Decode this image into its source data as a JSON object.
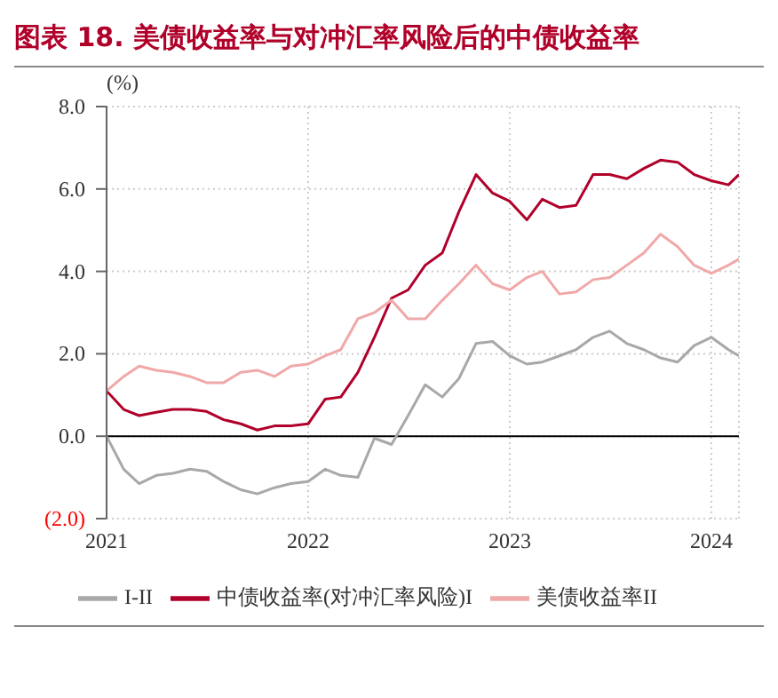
{
  "chart_data": {
    "type": "line",
    "title": "图表 18. 美债收益率与对冲汇率风险后的中债收益率",
    "ylabel": "(%)",
    "x": [
      "2021-01-01",
      "2021-02-01",
      "2021-03-01",
      "2021-04-01",
      "2021-05-01",
      "2021-06-01",
      "2021-07-01",
      "2021-08-01",
      "2021-09-01",
      "2021-10-01",
      "2021-11-01",
      "2021-12-01",
      "2022-01-01",
      "2022-02-01",
      "2022-03-01",
      "2022-04-01",
      "2022-05-01",
      "2022-06-01",
      "2022-07-01",
      "2022-08-01",
      "2022-09-01",
      "2022-10-01",
      "2022-11-01",
      "2022-12-01",
      "2023-01-01",
      "2023-02-01",
      "2023-03-01",
      "2023-04-01",
      "2023-05-01",
      "2023-06-01",
      "2023-07-01",
      "2023-08-01",
      "2023-09-01",
      "2023-10-01",
      "2023-11-01",
      "2023-12-01",
      "2024-01-01",
      "2024-02-01",
      "2024-02-20"
    ],
    "series": [
      {
        "name": "中债收益率(对冲汇率风险)I",
        "color": "#b0002a",
        "values": [
          1.1,
          0.65,
          0.5,
          0.58,
          0.65,
          0.65,
          0.6,
          0.4,
          0.3,
          0.15,
          0.25,
          0.25,
          0.3,
          0.9,
          0.95,
          1.55,
          2.4,
          3.35,
          3.55,
          4.15,
          4.45,
          5.45,
          6.35,
          5.9,
          5.7,
          5.25,
          5.75,
          5.55,
          5.6,
          6.35,
          6.35,
          6.25,
          6.5,
          6.7,
          6.65,
          6.35,
          6.2,
          6.1,
          6.35
        ]
      },
      {
        "name": "美债收益率II",
        "color": "#f0a8a8",
        "values": [
          1.1,
          1.45,
          1.7,
          1.6,
          1.55,
          1.45,
          1.3,
          1.3,
          1.55,
          1.6,
          1.45,
          1.7,
          1.75,
          1.95,
          2.1,
          2.85,
          3.0,
          3.3,
          2.85,
          2.85,
          3.3,
          3.7,
          4.15,
          3.7,
          3.55,
          3.85,
          4.0,
          3.45,
          3.5,
          3.8,
          3.85,
          4.15,
          4.45,
          4.9,
          4.6,
          4.15,
          3.95,
          4.15,
          4.3
        ]
      },
      {
        "name": "I-II",
        "color": "#a8a8a8",
        "values": [
          0.0,
          -0.8,
          -1.15,
          -0.95,
          -0.9,
          -0.8,
          -0.85,
          -1.1,
          -1.3,
          -1.4,
          -1.25,
          -1.15,
          -1.1,
          -0.8,
          -0.95,
          -1.0,
          -0.05,
          -0.2,
          0.5,
          1.25,
          0.95,
          1.4,
          2.25,
          2.3,
          1.95,
          1.75,
          1.8,
          1.95,
          2.1,
          2.4,
          2.55,
          2.25,
          2.1,
          1.9,
          1.8,
          2.2,
          2.4,
          2.1,
          1.95
        ]
      }
    ],
    "xlim": [
      "2021-01-01",
      "2024-02-20"
    ],
    "xticks": [
      "2021",
      "2022",
      "2023",
      "2024"
    ],
    "ylim": [
      -2,
      8
    ],
    "yticks": [
      {
        "value": -2,
        "label": "(2.0)"
      },
      {
        "value": 0,
        "label": "0.0"
      },
      {
        "value": 2,
        "label": "2.0"
      },
      {
        "value": 4,
        "label": "4.0"
      },
      {
        "value": 6,
        "label": "6.0"
      },
      {
        "value": 8,
        "label": "8.0"
      }
    ],
    "ref_lines": [
      {
        "axis": "y",
        "value": 0,
        "color": "#000000"
      }
    ],
    "grid": true,
    "legend": "bottom",
    "marker": "none",
    "line_style": "solid"
  }
}
